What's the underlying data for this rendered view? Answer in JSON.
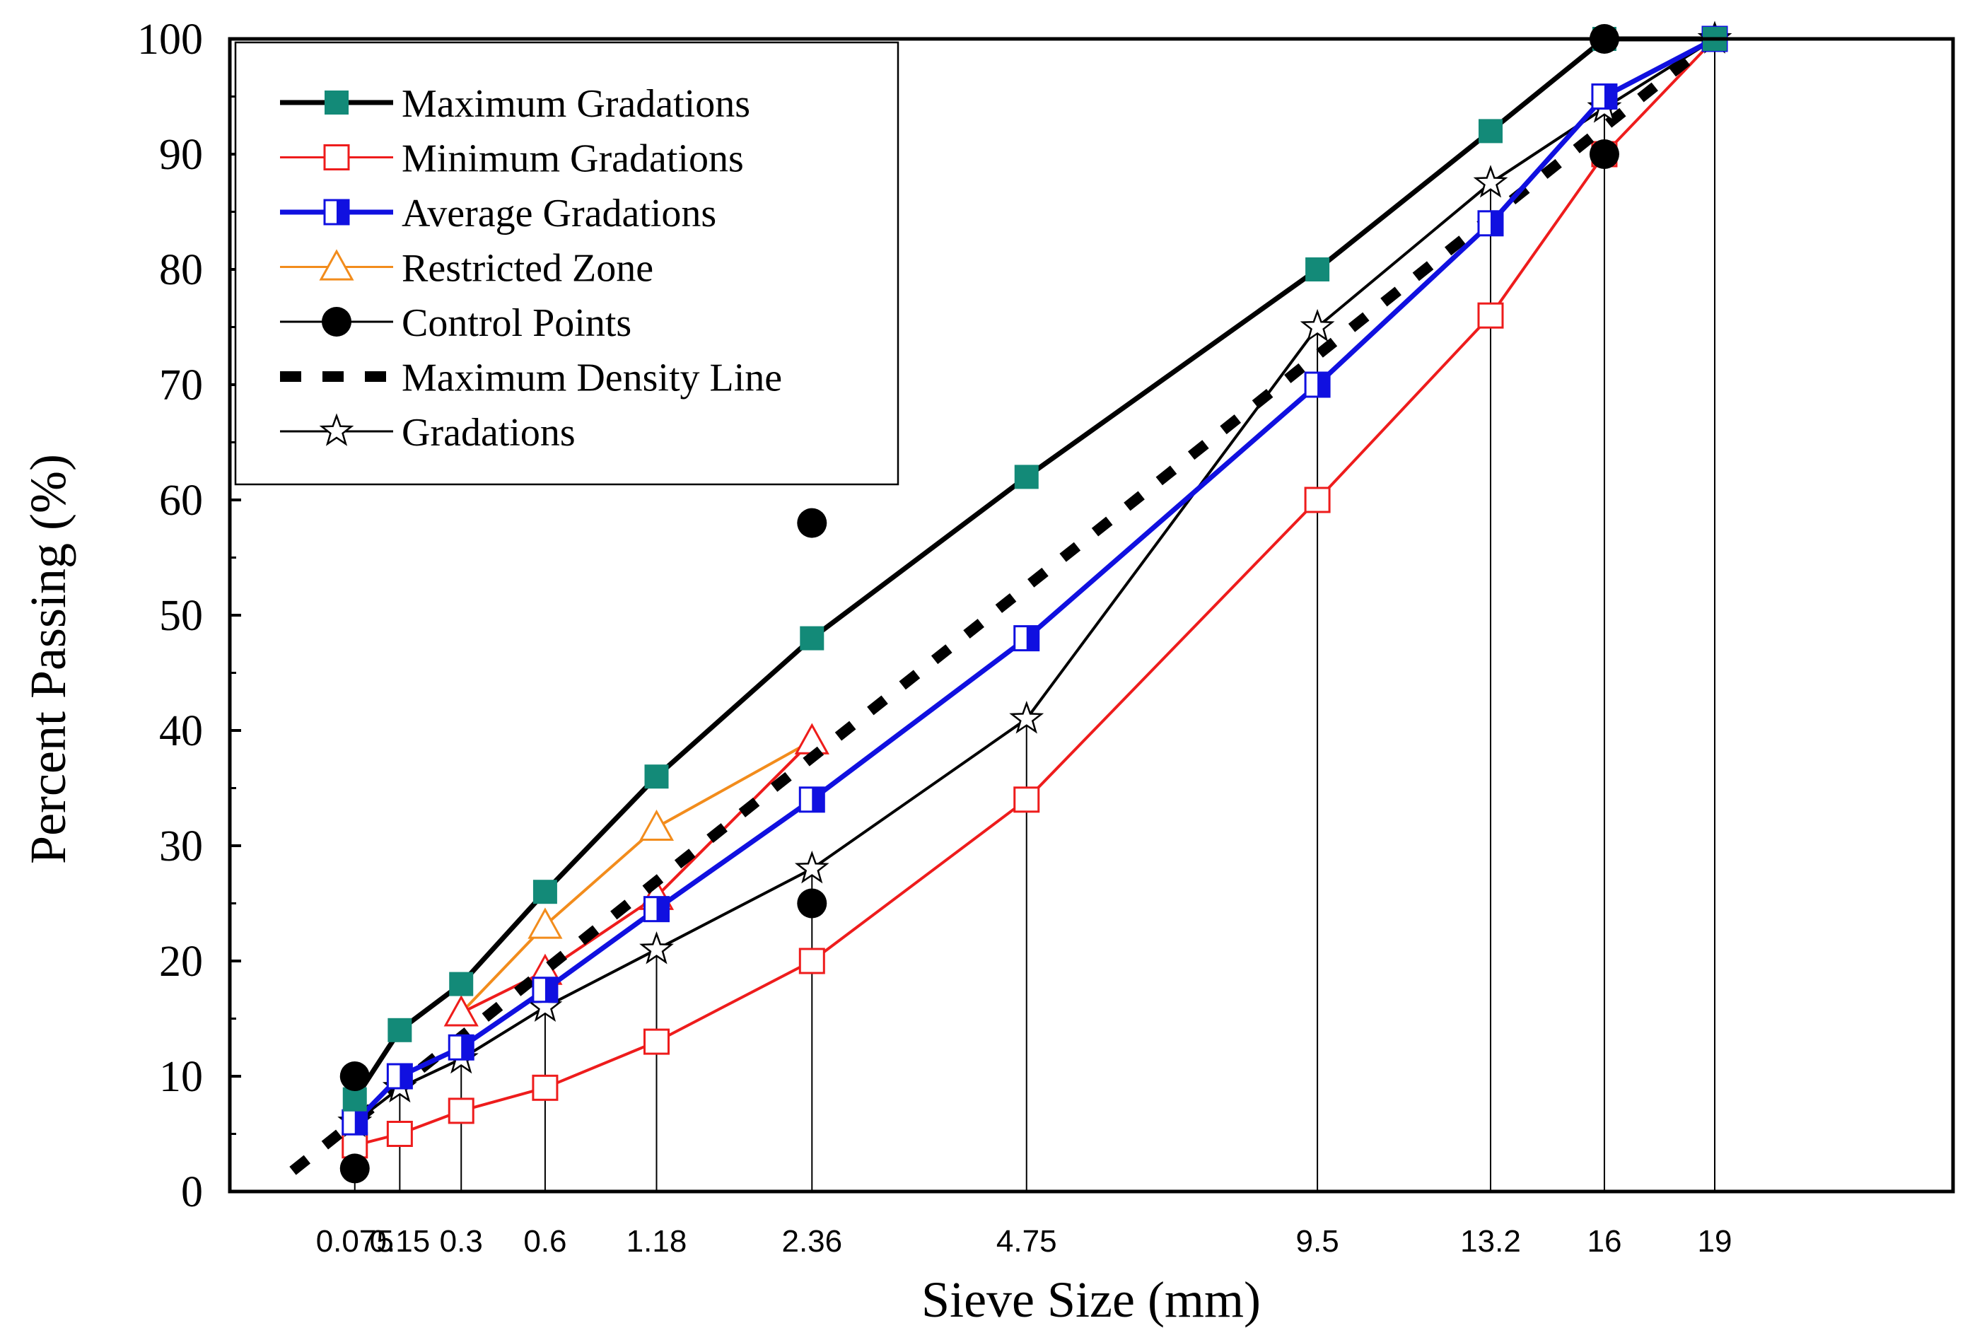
{
  "chart_data": {
    "type": "line",
    "title": "",
    "xlabel": "Sieve Size (mm)",
    "ylabel": "Percent Passing (%)",
    "ylim": [
      0,
      100
    ],
    "yticks": [
      0,
      10,
      20,
      30,
      40,
      50,
      60,
      70,
      80,
      90,
      100
    ],
    "x_scale": "sieve size raised to the 0.45 power",
    "sieves": [
      0.075,
      0.15,
      0.3,
      0.6,
      1.18,
      2.36,
      4.75,
      9.5,
      13.2,
      16,
      19
    ],
    "xtick_labels": [
      "0.075",
      "0.15",
      "0.3",
      "0.6",
      "1.18",
      "2.36",
      "4.75",
      "9.5",
      "13.2",
      "16",
      "19"
    ],
    "legend_position": "top-left",
    "series": [
      {
        "name": "Maximum Gradations",
        "color": "#000000",
        "marker": "filled-square",
        "marker_color": "#138a78",
        "line_style": "solid-bold",
        "x": [
          0.075,
          0.15,
          0.3,
          0.6,
          1.18,
          2.36,
          4.75,
          9.5,
          13.2,
          16,
          19
        ],
        "y": [
          8,
          14,
          18,
          26,
          36,
          48,
          62,
          80,
          92,
          100,
          100
        ]
      },
      {
        "name": "Minimum Gradations",
        "color": "#ee1c1c",
        "marker": "open-square",
        "marker_color": "#ee1c1c",
        "line_style": "solid",
        "x": [
          0.075,
          0.15,
          0.3,
          0.6,
          1.18,
          2.36,
          4.75,
          9.5,
          13.2,
          16,
          19
        ],
        "y": [
          4,
          5,
          7,
          9,
          13,
          20,
          34,
          60,
          76,
          90,
          100
        ]
      },
      {
        "name": "Average Gradations",
        "color": "#1010e0",
        "marker": "half-filled-square",
        "marker_color": "#1010e0",
        "line_style": "solid-bold",
        "x": [
          0.075,
          0.15,
          0.3,
          0.6,
          1.18,
          2.36,
          4.75,
          9.5,
          13.2,
          16,
          19
        ],
        "y": [
          6,
          10,
          12.5,
          17.5,
          24.5,
          34,
          48,
          70,
          84,
          95,
          100
        ]
      },
      {
        "name": "Restricted Zone",
        "color": "#f28c1c",
        "marker": "open-triangle",
        "marker_color": "#f28c1c",
        "line_style": "solid",
        "boundaries": [
          {
            "name": "upper",
            "color": "#f28c1c",
            "marker_color": "#f28c1c",
            "x": [
              0.3,
              0.6,
              1.18,
              2.36
            ],
            "y": [
              15.5,
              23.1,
              31.6,
              39.1
            ]
          },
          {
            "name": "lower",
            "color": "#ee1c1c",
            "marker_color": "#ee1c1c",
            "x": [
              0.3,
              0.6,
              1.18,
              2.36
            ],
            "y": [
              15.5,
              19.1,
              25.6,
              39.1
            ]
          }
        ]
      },
      {
        "name": "Control Points",
        "color": "#000000",
        "marker": "filled-circle",
        "marker_color": "#000000",
        "line_style": "none",
        "x": [
          0.075,
          0.075,
          2.36,
          2.36,
          16,
          16
        ],
        "y": [
          2,
          10,
          25,
          58,
          90,
          100
        ]
      },
      {
        "name": "Maximum Density Line",
        "color": "#000000",
        "marker": "none",
        "line_style": "dashed-bold",
        "x": [
          0.0157,
          19
        ],
        "y": [
          1.8,
          100
        ]
      },
      {
        "name": "Gradations",
        "color": "#000000",
        "marker": "open-star",
        "marker_color": "#000000",
        "line_style": "solid",
        "x": [
          0.075,
          0.15,
          0.3,
          0.6,
          1.18,
          2.36,
          4.75,
          9.5,
          13.2,
          16,
          19
        ],
        "y": [
          6,
          9,
          11.5,
          16,
          21,
          28,
          41,
          75,
          87.5,
          94,
          100
        ]
      }
    ]
  }
}
